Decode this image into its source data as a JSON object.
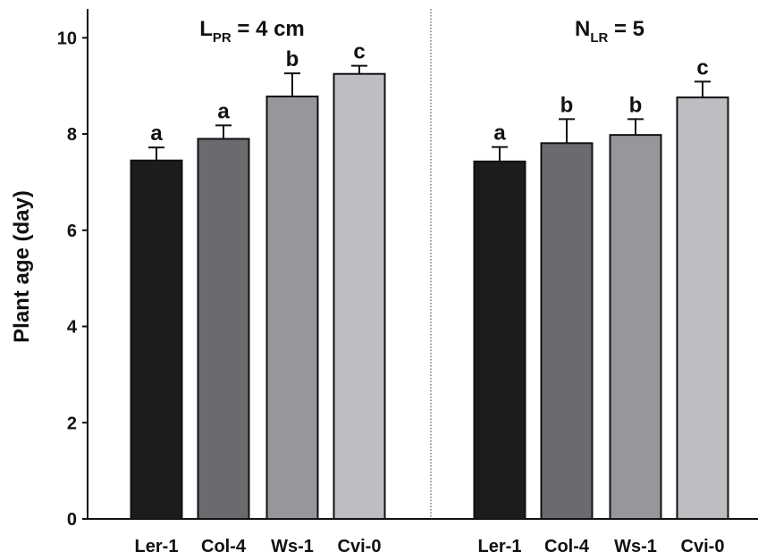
{
  "chart_data": [
    {
      "type": "bar",
      "title": "LPR = 4 cm",
      "title_parts": {
        "main": "L",
        "sub": "PR",
        "rest": " = 4 cm"
      },
      "ylabel": "Plant age (day)",
      "ylim": [
        0,
        10.6
      ],
      "yticks": [
        0,
        2,
        4,
        6,
        8,
        10
      ],
      "categories": [
        "Ler-1",
        "Col-4",
        "Ws-1",
        "Cvi-0"
      ],
      "values": [
        7.45,
        7.9,
        8.78,
        9.25
      ],
      "errors": [
        0.27,
        0.28,
        0.48,
        0.17
      ],
      "significance": [
        "a",
        "a",
        "b",
        "c"
      ],
      "bar_colors": [
        "#1c1c1c",
        "#6a6b6f",
        "#97979b",
        "#bebec2"
      ],
      "grid": false
    },
    {
      "type": "bar",
      "title": "NLR = 5",
      "title_parts": {
        "main": "N",
        "sub": "LR",
        "rest": " = 5"
      },
      "ylabel": "",
      "ylim": [
        0,
        10.6
      ],
      "yticks": [
        0,
        2,
        4,
        6,
        8,
        10
      ],
      "categories": [
        "Ler-1",
        "Col-4",
        "Ws-1",
        "Cvi-0"
      ],
      "values": [
        7.43,
        7.81,
        7.98,
        8.76
      ],
      "errors": [
        0.3,
        0.5,
        0.33,
        0.33
      ],
      "significance": [
        "a",
        "b",
        "b",
        "c"
      ],
      "bar_colors": [
        "#1c1c1c",
        "#6a6b6f",
        "#97979b",
        "#bebec2"
      ],
      "grid": false
    }
  ]
}
